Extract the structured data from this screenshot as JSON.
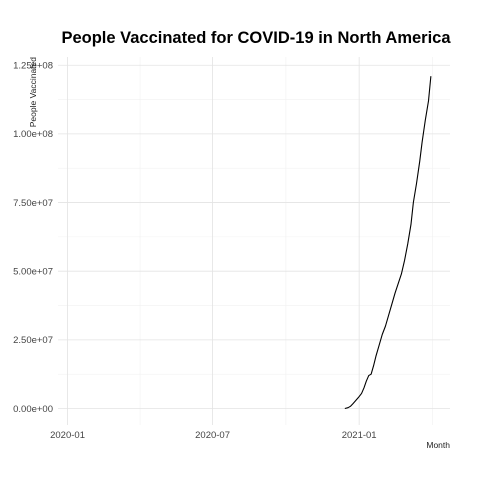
{
  "chart_data": {
    "type": "line",
    "title": "People Vaccinated for COVID-19 in North America",
    "xlabel": "Month",
    "ylabel": "People Vaccinated",
    "x_type": "date",
    "xlim": [
      "2019-12-20",
      "2021-04-25"
    ],
    "ylim": [
      -6000000,
      128000000
    ],
    "x_ticks": [
      {
        "value": "2020-01-01",
        "label": "2020-01"
      },
      {
        "value": "2020-07-01",
        "label": "2020-07"
      },
      {
        "value": "2021-01-01",
        "label": "2021-01"
      }
    ],
    "y_ticks": [
      {
        "value": 0,
        "label": "0.00e+00"
      },
      {
        "value": 25000000,
        "label": "2.50e+07"
      },
      {
        "value": 50000000,
        "label": "5.00e+07"
      },
      {
        "value": 75000000,
        "label": "7.50e+07"
      },
      {
        "value": 100000000,
        "label": "1.00e+08"
      },
      {
        "value": 125000000,
        "label": "1.25e+08"
      }
    ],
    "grid": true,
    "legend": "none",
    "series": [
      {
        "color": "#000000",
        "points": [
          {
            "x": "2020-12-14",
            "y": 0
          },
          {
            "x": "2020-12-18",
            "y": 300000
          },
          {
            "x": "2020-12-21",
            "y": 800000
          },
          {
            "x": "2020-12-24",
            "y": 1700000
          },
          {
            "x": "2020-12-28",
            "y": 3000000
          },
          {
            "x": "2020-12-31",
            "y": 4000000
          },
          {
            "x": "2021-01-04",
            "y": 5500000
          },
          {
            "x": "2021-01-07",
            "y": 7500000
          },
          {
            "x": "2021-01-10",
            "y": 10000000
          },
          {
            "x": "2021-01-13",
            "y": 12000000
          },
          {
            "x": "2021-01-16",
            "y": 12500000
          },
          {
            "x": "2021-01-19",
            "y": 15500000
          },
          {
            "x": "2021-01-22",
            "y": 19000000
          },
          {
            "x": "2021-01-26",
            "y": 23000000
          },
          {
            "x": "2021-01-30",
            "y": 27000000
          },
          {
            "x": "2021-02-03",
            "y": 30000000
          },
          {
            "x": "2021-02-07",
            "y": 34000000
          },
          {
            "x": "2021-02-11",
            "y": 38000000
          },
          {
            "x": "2021-02-15",
            "y": 42000000
          },
          {
            "x": "2021-02-19",
            "y": 45500000
          },
          {
            "x": "2021-02-23",
            "y": 49000000
          },
          {
            "x": "2021-02-27",
            "y": 54000000
          },
          {
            "x": "2021-03-03",
            "y": 60000000
          },
          {
            "x": "2021-03-07",
            "y": 67000000
          },
          {
            "x": "2021-03-10",
            "y": 75000000
          },
          {
            "x": "2021-03-14",
            "y": 82000000
          },
          {
            "x": "2021-03-18",
            "y": 90000000
          },
          {
            "x": "2021-03-21",
            "y": 97000000
          },
          {
            "x": "2021-03-25",
            "y": 105000000
          },
          {
            "x": "2021-03-29",
            "y": 112000000
          },
          {
            "x": "2021-04-01",
            "y": 121000000
          }
        ]
      }
    ]
  }
}
